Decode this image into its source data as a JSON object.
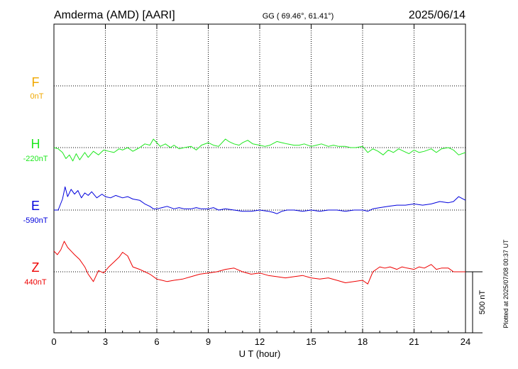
{
  "header": {
    "station": "Amderma (AMD)  [AARI]",
    "coords": "GG ( 69.46°,  61.41°)",
    "date": "2025/06/14"
  },
  "plotted_note": "Plotted at 2025/07/08 00:37 UT",
  "colors": {
    "F": "#f0a800",
    "H": "#1ee81e",
    "E": "#0000dd",
    "Z": "#ee0000",
    "grid": "#000000"
  },
  "chart_data": {
    "type": "line",
    "xlabel": "U T (hour)",
    "xlim": [
      0,
      24
    ],
    "x_ticks": [
      "0",
      "3",
      "6",
      "9",
      "12",
      "15",
      "18",
      "21",
      "24"
    ],
    "scale_bar_label": "500 nT",
    "scale_bar_nT": 500,
    "series": [
      {
        "name": "F",
        "offset_label": "0nT",
        "values": []
      },
      {
        "name": "H",
        "offset_label": "-220nT",
        "x": [
          0,
          0.25,
          0.5,
          0.7,
          0.9,
          1.1,
          1.3,
          1.5,
          1.8,
          2.0,
          2.3,
          2.6,
          2.9,
          3.2,
          3.5,
          3.8,
          4.0,
          4.3,
          4.6,
          5.0,
          5.3,
          5.6,
          5.8,
          6.0,
          6.2,
          6.5,
          6.8,
          7.0,
          7.3,
          7.6,
          8.0,
          8.3,
          8.6,
          9.0,
          9.3,
          9.6,
          10.0,
          10.2,
          10.5,
          10.8,
          11.0,
          11.3,
          11.6,
          12.0,
          12.3,
          12.6,
          13.0,
          13.3,
          13.6,
          14.0,
          14.3,
          14.6,
          15.0,
          15.3,
          15.6,
          16.0,
          16.3,
          16.6,
          17.0,
          17.3,
          17.6,
          18.0,
          18.3,
          18.6,
          18.9,
          19.2,
          19.5,
          19.8,
          20.1,
          20.4,
          20.7,
          21.0,
          21.3,
          21.6,
          22.0,
          22.3,
          22.6,
          23.0,
          23.3,
          23.6,
          24.0
        ],
        "values": [
          -220,
          -230,
          -260,
          -310,
          -280,
          -330,
          -270,
          -320,
          -260,
          -300,
          -250,
          -280,
          -240,
          -250,
          -260,
          -230,
          -240,
          -220,
          -250,
          -220,
          -190,
          -200,
          -150,
          -180,
          -210,
          -190,
          -220,
          -200,
          -230,
          -220,
          -210,
          -240,
          -200,
          -180,
          -200,
          -210,
          -150,
          -170,
          -190,
          -200,
          -180,
          -160,
          -190,
          -200,
          -210,
          -200,
          -170,
          -180,
          -190,
          -200,
          -200,
          -190,
          -210,
          -200,
          -190,
          -210,
          -200,
          -210,
          -210,
          -220,
          -220,
          -210,
          -260,
          -230,
          -250,
          -280,
          -240,
          -260,
          -230,
          -250,
          -270,
          -240,
          -260,
          -250,
          -230,
          -260,
          -230,
          -220,
          -240,
          -280,
          -260
        ]
      },
      {
        "name": "E",
        "offset_label": "-590nT",
        "x": [
          0,
          0.25,
          0.5,
          0.65,
          0.8,
          1.0,
          1.2,
          1.4,
          1.6,
          1.8,
          2.0,
          2.2,
          2.5,
          2.8,
          3.0,
          3.3,
          3.6,
          4.0,
          4.3,
          4.6,
          5.0,
          5.3,
          5.6,
          5.8,
          6.0,
          6.3,
          6.6,
          7.0,
          7.3,
          7.6,
          8.0,
          8.3,
          8.6,
          9.0,
          9.3,
          9.6,
          10.0,
          10.5,
          11.0,
          11.5,
          12.0,
          12.5,
          12.8,
          13.0,
          13.3,
          13.6,
          14.0,
          14.5,
          15.0,
          15.5,
          16.0,
          16.5,
          17.0,
          17.5,
          18.0,
          18.3,
          18.6,
          19.0,
          19.5,
          20.0,
          20.5,
          21.0,
          21.5,
          22.0,
          22.5,
          23.0,
          23.3,
          23.6,
          24.0
        ],
        "values": [
          -590,
          -590,
          -500,
          -400,
          -480,
          -420,
          -460,
          -430,
          -490,
          -450,
          -470,
          -440,
          -490,
          -460,
          -480,
          -490,
          -470,
          -490,
          -480,
          -500,
          -510,
          -540,
          -560,
          -580,
          -580,
          -570,
          -560,
          -580,
          -570,
          -580,
          -580,
          -570,
          -580,
          -580,
          -570,
          -590,
          -580,
          -590,
          -600,
          -600,
          -590,
          -600,
          -610,
          -620,
          -600,
          -590,
          -590,
          -600,
          -590,
          -600,
          -590,
          -590,
          -600,
          -590,
          -590,
          -600,
          -580,
          -570,
          -560,
          -550,
          -550,
          -540,
          -550,
          -540,
          -520,
          -530,
          -520,
          -480,
          -510
        ]
      },
      {
        "name": "Z",
        "offset_label": "440nT",
        "x": [
          0,
          0.2,
          0.4,
          0.6,
          0.8,
          1.0,
          1.2,
          1.5,
          1.8,
          2.0,
          2.3,
          2.6,
          2.9,
          3.2,
          3.5,
          3.8,
          4.0,
          4.3,
          4.6,
          5.0,
          5.3,
          5.6,
          6.0,
          6.3,
          6.6,
          7.0,
          7.5,
          8.0,
          8.5,
          9.0,
          9.5,
          10.0,
          10.5,
          11.0,
          11.5,
          12.0,
          12.5,
          13.0,
          13.5,
          14.0,
          14.5,
          15.0,
          15.5,
          16.0,
          16.5,
          17.0,
          17.5,
          18.0,
          18.3,
          18.6,
          18.8,
          19.0,
          19.3,
          19.6,
          20.0,
          20.3,
          20.6,
          21.0,
          21.3,
          21.6,
          22.0,
          22.3,
          22.6,
          23.0,
          23.3,
          23.6,
          24.0
        ],
        "values": [
          610,
          580,
          620,
          690,
          640,
          610,
          580,
          540,
          480,
          420,
          360,
          450,
          430,
          480,
          520,
          560,
          600,
          570,
          480,
          460,
          440,
          420,
          380,
          370,
          360,
          370,
          380,
          400,
          420,
          430,
          440,
          460,
          470,
          440,
          420,
          430,
          410,
          400,
          390,
          400,
          410,
          390,
          380,
          390,
          370,
          350,
          360,
          370,
          340,
          440,
          460,
          480,
          470,
          480,
          460,
          480,
          470,
          460,
          480,
          470,
          500,
          460,
          470,
          470,
          440,
          440,
          440
        ]
      }
    ]
  }
}
